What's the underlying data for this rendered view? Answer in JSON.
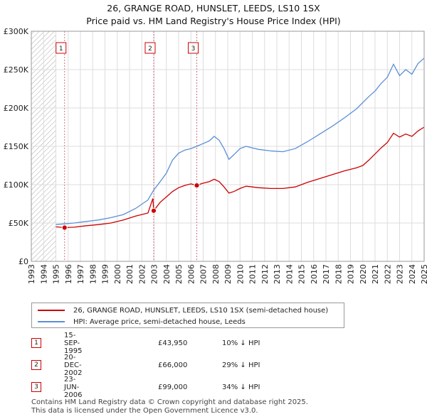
{
  "header": {
    "title": "26, GRANGE ROAD, HUNSLET, LEEDS, LS10 1SX",
    "subtitle": "Price paid vs. HM Land Registry's House Price Index (HPI)"
  },
  "colors": {
    "property": "#cc0000",
    "hpi": "#5b8fd6",
    "marker_border": "#cc0000",
    "vline": "#d07080",
    "hatch": "#aaaaaa"
  },
  "chart_data": {
    "type": "line",
    "title": "26, GRANGE ROAD, HUNSLET, LEEDS, LS10 1SX",
    "subtitle": "Price paid vs. HM Land Registry's House Price Index (HPI)",
    "xlabel": "",
    "ylabel": "",
    "xlim": [
      1993,
      2025
    ],
    "ylim": [
      0,
      300000
    ],
    "x_ticks": [
      1993,
      1994,
      1995,
      1996,
      1997,
      1998,
      1999,
      2000,
      2001,
      2002,
      2003,
      2004,
      2005,
      2006,
      2007,
      2008,
      2009,
      2010,
      2011,
      2012,
      2013,
      2014,
      2015,
      2016,
      2017,
      2018,
      2019,
      2020,
      2021,
      2022,
      2023,
      2024,
      2025
    ],
    "x_tick_labels": [
      "1993",
      "1994",
      "1995",
      "1996",
      "1997",
      "1998",
      "1999",
      "2000",
      "2001",
      "2002",
      "2003",
      "2004",
      "2005",
      "2006",
      "2007",
      "2008",
      "2009",
      "2010",
      "2011",
      "2012",
      "2013",
      "2014",
      "2015",
      "2016",
      "2017",
      "2018",
      "2019",
      "2020",
      "2021",
      "2022",
      "2023",
      "2024",
      "2025"
    ],
    "y_ticks": [
      0,
      50000,
      100000,
      150000,
      200000,
      250000,
      300000
    ],
    "y_tick_labels": [
      "£0",
      "£50K",
      "£100K",
      "£150K",
      "£200K",
      "£250K",
      "£300K"
    ],
    "grid": true,
    "hatched_region": [
      1993,
      1995.0
    ],
    "series": [
      {
        "name": "26, GRANGE ROAD, HUNSLET, LEEDS, LS10 1SX (semi-detached house)",
        "color": "#cc0000",
        "points": [
          [
            1995.0,
            45000
          ],
          [
            1995.71,
            43950
          ],
          [
            1996.5,
            44500
          ],
          [
            1997.5,
            46500
          ],
          [
            1998.5,
            48000
          ],
          [
            1999.5,
            50000
          ],
          [
            2000.5,
            54000
          ],
          [
            2001.5,
            59000
          ],
          [
            2002.5,
            63000
          ],
          [
            2002.9,
            82000
          ],
          [
            2002.97,
            66000
          ],
          [
            2003.5,
            77000
          ],
          [
            2004.0,
            84000
          ],
          [
            2004.5,
            91000
          ],
          [
            2005.0,
            96000
          ],
          [
            2005.5,
            99000
          ],
          [
            2006.0,
            101000
          ],
          [
            2006.48,
            99000
          ],
          [
            2006.9,
            101500
          ],
          [
            2007.5,
            104000
          ],
          [
            2007.9,
            107000
          ],
          [
            2008.3,
            104000
          ],
          [
            2008.7,
            97000
          ],
          [
            2009.1,
            89000
          ],
          [
            2009.5,
            91000
          ],
          [
            2010.0,
            95000
          ],
          [
            2010.5,
            98000
          ],
          [
            2011.0,
            97000
          ],
          [
            2011.5,
            96000
          ],
          [
            2012.5,
            95000
          ],
          [
            2013.5,
            95000
          ],
          [
            2014.5,
            97000
          ],
          [
            2015.5,
            103000
          ],
          [
            2016.5,
            108000
          ],
          [
            2017.5,
            113000
          ],
          [
            2018.5,
            118000
          ],
          [
            2019.5,
            122000
          ],
          [
            2020.0,
            125000
          ],
          [
            2020.5,
            132000
          ],
          [
            2021.0,
            140000
          ],
          [
            2021.5,
            148000
          ],
          [
            2022.0,
            155000
          ],
          [
            2022.5,
            167000
          ],
          [
            2023.0,
            162000
          ],
          [
            2023.5,
            166000
          ],
          [
            2024.0,
            163000
          ],
          [
            2024.5,
            170000
          ],
          [
            2025.0,
            175000
          ]
        ]
      },
      {
        "name": "HPI: Average price, semi-detached house, Leeds",
        "color": "#5b8fd6",
        "points": [
          [
            1995.0,
            48000
          ],
          [
            1995.71,
            48900
          ],
          [
            1996.5,
            50000
          ],
          [
            1997.5,
            52000
          ],
          [
            1998.5,
            54000
          ],
          [
            1999.5,
            57000
          ],
          [
            2000.5,
            61000
          ],
          [
            2001.5,
            69000
          ],
          [
            2002.5,
            80000
          ],
          [
            2002.97,
            93000
          ],
          [
            2003.5,
            104000
          ],
          [
            2004.0,
            115000
          ],
          [
            2004.5,
            132000
          ],
          [
            2005.0,
            141000
          ],
          [
            2005.5,
            145000
          ],
          [
            2006.0,
            147000
          ],
          [
            2006.48,
            150000
          ],
          [
            2006.9,
            153000
          ],
          [
            2007.5,
            157000
          ],
          [
            2007.9,
            163000
          ],
          [
            2008.3,
            158000
          ],
          [
            2008.7,
            147000
          ],
          [
            2009.1,
            133000
          ],
          [
            2009.5,
            139000
          ],
          [
            2010.0,
            147000
          ],
          [
            2010.5,
            150000
          ],
          [
            2011.0,
            148000
          ],
          [
            2011.5,
            146000
          ],
          [
            2012.5,
            144000
          ],
          [
            2013.5,
            143000
          ],
          [
            2014.5,
            147000
          ],
          [
            2015.5,
            156000
          ],
          [
            2016.5,
            166000
          ],
          [
            2017.5,
            176000
          ],
          [
            2018.5,
            187000
          ],
          [
            2019.5,
            199000
          ],
          [
            2020.0,
            207000
          ],
          [
            2020.5,
            215000
          ],
          [
            2021.0,
            222000
          ],
          [
            2021.5,
            232000
          ],
          [
            2022.0,
            240000
          ],
          [
            2022.5,
            257000
          ],
          [
            2023.0,
            242000
          ],
          [
            2023.5,
            250000
          ],
          [
            2024.0,
            244000
          ],
          [
            2024.5,
            258000
          ],
          [
            2025.0,
            265000
          ]
        ]
      }
    ],
    "transactions": [
      {
        "label": "1",
        "x": 1995.71,
        "y": 43950
      },
      {
        "label": "2",
        "x": 2002.97,
        "y": 66000
      },
      {
        "label": "3",
        "x": 2006.48,
        "y": 99000
      }
    ]
  },
  "legend": {
    "items": [
      {
        "label": "26, GRANGE ROAD, HUNSLET, LEEDS, LS10 1SX (semi-detached house)"
      },
      {
        "label": "HPI: Average price, semi-detached house, Leeds"
      }
    ]
  },
  "transactions_table": [
    {
      "num": "1",
      "date": "15-SEP-1995",
      "price": "£43,950",
      "hpi": "10% ↓ HPI"
    },
    {
      "num": "2",
      "date": "20-DEC-2002",
      "price": "£66,000",
      "hpi": "29% ↓ HPI"
    },
    {
      "num": "3",
      "date": "23-JUN-2006",
      "price": "£99,000",
      "hpi": "34% ↓ HPI"
    }
  ],
  "footer": {
    "line1": "Contains HM Land Registry data © Crown copyright and database right 2025.",
    "line2": "This data is licensed under the Open Government Licence v3.0."
  }
}
